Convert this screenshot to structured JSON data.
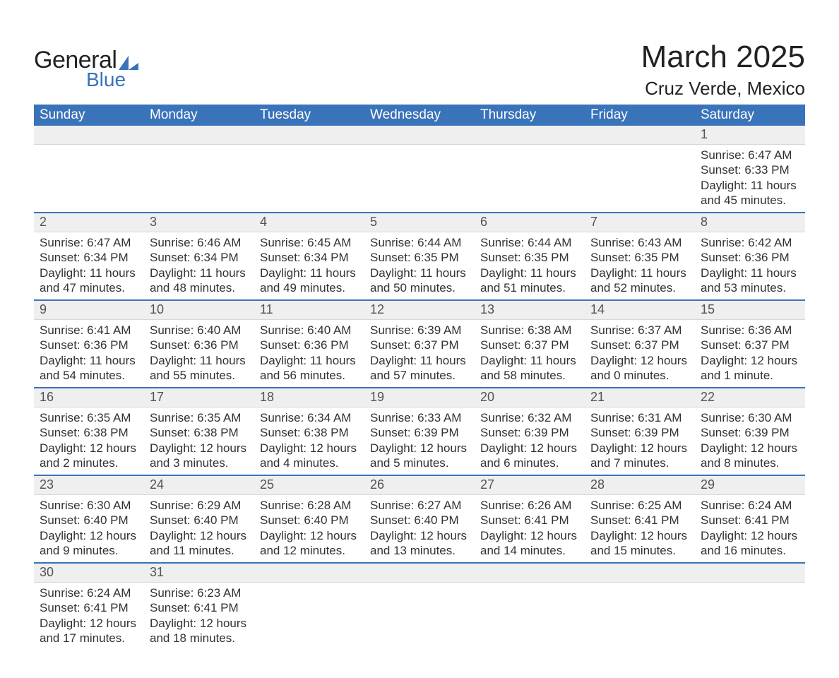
{
  "brand": {
    "general": "General",
    "blue": "Blue",
    "tri_color": "#3973b9"
  },
  "title": {
    "month": "March 2025",
    "location": "Cruz Verde, Mexico"
  },
  "colors": {
    "header_bg": "#3973b9",
    "header_text": "#ffffff",
    "daynum_bg": "#efefef",
    "row_border": "#3973b9",
    "text": "#323232",
    "daynum_text": "#535353"
  },
  "typography": {
    "title_fontsize": 44,
    "location_fontsize": 26,
    "header_fontsize": 19,
    "cell_fontsize": 17
  },
  "weekdays": [
    "Sunday",
    "Monday",
    "Tuesday",
    "Wednesday",
    "Thursday",
    "Friday",
    "Saturday"
  ],
  "weeks": [
    {
      "days": [
        null,
        null,
        null,
        null,
        null,
        null,
        {
          "num": "1",
          "sunrise": "Sunrise: 6:47 AM",
          "sunset": "Sunset: 6:33 PM",
          "day1": "Daylight: 11 hours",
          "day2": "and 45 minutes."
        }
      ]
    },
    {
      "days": [
        {
          "num": "2",
          "sunrise": "Sunrise: 6:47 AM",
          "sunset": "Sunset: 6:34 PM",
          "day1": "Daylight: 11 hours",
          "day2": "and 47 minutes."
        },
        {
          "num": "3",
          "sunrise": "Sunrise: 6:46 AM",
          "sunset": "Sunset: 6:34 PM",
          "day1": "Daylight: 11 hours",
          "day2": "and 48 minutes."
        },
        {
          "num": "4",
          "sunrise": "Sunrise: 6:45 AM",
          "sunset": "Sunset: 6:34 PM",
          "day1": "Daylight: 11 hours",
          "day2": "and 49 minutes."
        },
        {
          "num": "5",
          "sunrise": "Sunrise: 6:44 AM",
          "sunset": "Sunset: 6:35 PM",
          "day1": "Daylight: 11 hours",
          "day2": "and 50 minutes."
        },
        {
          "num": "6",
          "sunrise": "Sunrise: 6:44 AM",
          "sunset": "Sunset: 6:35 PM",
          "day1": "Daylight: 11 hours",
          "day2": "and 51 minutes."
        },
        {
          "num": "7",
          "sunrise": "Sunrise: 6:43 AM",
          "sunset": "Sunset: 6:35 PM",
          "day1": "Daylight: 11 hours",
          "day2": "and 52 minutes."
        },
        {
          "num": "8",
          "sunrise": "Sunrise: 6:42 AM",
          "sunset": "Sunset: 6:36 PM",
          "day1": "Daylight: 11 hours",
          "day2": "and 53 minutes."
        }
      ]
    },
    {
      "days": [
        {
          "num": "9",
          "sunrise": "Sunrise: 6:41 AM",
          "sunset": "Sunset: 6:36 PM",
          "day1": "Daylight: 11 hours",
          "day2": "and 54 minutes."
        },
        {
          "num": "10",
          "sunrise": "Sunrise: 6:40 AM",
          "sunset": "Sunset: 6:36 PM",
          "day1": "Daylight: 11 hours",
          "day2": "and 55 minutes."
        },
        {
          "num": "11",
          "sunrise": "Sunrise: 6:40 AM",
          "sunset": "Sunset: 6:36 PM",
          "day1": "Daylight: 11 hours",
          "day2": "and 56 minutes."
        },
        {
          "num": "12",
          "sunrise": "Sunrise: 6:39 AM",
          "sunset": "Sunset: 6:37 PM",
          "day1": "Daylight: 11 hours",
          "day2": "and 57 minutes."
        },
        {
          "num": "13",
          "sunrise": "Sunrise: 6:38 AM",
          "sunset": "Sunset: 6:37 PM",
          "day1": "Daylight: 11 hours",
          "day2": "and 58 minutes."
        },
        {
          "num": "14",
          "sunrise": "Sunrise: 6:37 AM",
          "sunset": "Sunset: 6:37 PM",
          "day1": "Daylight: 12 hours",
          "day2": "and 0 minutes."
        },
        {
          "num": "15",
          "sunrise": "Sunrise: 6:36 AM",
          "sunset": "Sunset: 6:37 PM",
          "day1": "Daylight: 12 hours",
          "day2": "and 1 minute."
        }
      ]
    },
    {
      "days": [
        {
          "num": "16",
          "sunrise": "Sunrise: 6:35 AM",
          "sunset": "Sunset: 6:38 PM",
          "day1": "Daylight: 12 hours",
          "day2": "and 2 minutes."
        },
        {
          "num": "17",
          "sunrise": "Sunrise: 6:35 AM",
          "sunset": "Sunset: 6:38 PM",
          "day1": "Daylight: 12 hours",
          "day2": "and 3 minutes."
        },
        {
          "num": "18",
          "sunrise": "Sunrise: 6:34 AM",
          "sunset": "Sunset: 6:38 PM",
          "day1": "Daylight: 12 hours",
          "day2": "and 4 minutes."
        },
        {
          "num": "19",
          "sunrise": "Sunrise: 6:33 AM",
          "sunset": "Sunset: 6:39 PM",
          "day1": "Daylight: 12 hours",
          "day2": "and 5 minutes."
        },
        {
          "num": "20",
          "sunrise": "Sunrise: 6:32 AM",
          "sunset": "Sunset: 6:39 PM",
          "day1": "Daylight: 12 hours",
          "day2": "and 6 minutes."
        },
        {
          "num": "21",
          "sunrise": "Sunrise: 6:31 AM",
          "sunset": "Sunset: 6:39 PM",
          "day1": "Daylight: 12 hours",
          "day2": "and 7 minutes."
        },
        {
          "num": "22",
          "sunrise": "Sunrise: 6:30 AM",
          "sunset": "Sunset: 6:39 PM",
          "day1": "Daylight: 12 hours",
          "day2": "and 8 minutes."
        }
      ]
    },
    {
      "days": [
        {
          "num": "23",
          "sunrise": "Sunrise: 6:30 AM",
          "sunset": "Sunset: 6:40 PM",
          "day1": "Daylight: 12 hours",
          "day2": "and 9 minutes."
        },
        {
          "num": "24",
          "sunrise": "Sunrise: 6:29 AM",
          "sunset": "Sunset: 6:40 PM",
          "day1": "Daylight: 12 hours",
          "day2": "and 11 minutes."
        },
        {
          "num": "25",
          "sunrise": "Sunrise: 6:28 AM",
          "sunset": "Sunset: 6:40 PM",
          "day1": "Daylight: 12 hours",
          "day2": "and 12 minutes."
        },
        {
          "num": "26",
          "sunrise": "Sunrise: 6:27 AM",
          "sunset": "Sunset: 6:40 PM",
          "day1": "Daylight: 12 hours",
          "day2": "and 13 minutes."
        },
        {
          "num": "27",
          "sunrise": "Sunrise: 6:26 AM",
          "sunset": "Sunset: 6:41 PM",
          "day1": "Daylight: 12 hours",
          "day2": "and 14 minutes."
        },
        {
          "num": "28",
          "sunrise": "Sunrise: 6:25 AM",
          "sunset": "Sunset: 6:41 PM",
          "day1": "Daylight: 12 hours",
          "day2": "and 15 minutes."
        },
        {
          "num": "29",
          "sunrise": "Sunrise: 6:24 AM",
          "sunset": "Sunset: 6:41 PM",
          "day1": "Daylight: 12 hours",
          "day2": "and 16 minutes."
        }
      ]
    },
    {
      "days": [
        {
          "num": "30",
          "sunrise": "Sunrise: 6:24 AM",
          "sunset": "Sunset: 6:41 PM",
          "day1": "Daylight: 12 hours",
          "day2": "and 17 minutes."
        },
        {
          "num": "31",
          "sunrise": "Sunrise: 6:23 AM",
          "sunset": "Sunset: 6:41 PM",
          "day1": "Daylight: 12 hours",
          "day2": "and 18 minutes."
        },
        null,
        null,
        null,
        null,
        null
      ]
    }
  ]
}
